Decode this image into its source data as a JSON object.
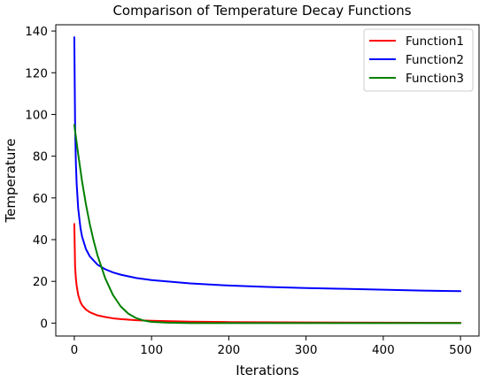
{
  "chart_data": {
    "type": "line",
    "title": "Comparison of Temperature Decay Functions",
    "xlabel": "Iterations",
    "ylabel": "Temperature",
    "xlim": [
      -24,
      524
    ],
    "ylim": [
      -6.2,
      143
    ],
    "xticks": [
      0,
      100,
      200,
      300,
      400,
      500
    ],
    "yticks": [
      0,
      20,
      40,
      60,
      80,
      100,
      120,
      140
    ],
    "grid": false,
    "legend_position": "top-right",
    "series": [
      {
        "name": "Function1",
        "color": "#ff0000",
        "x": [
          0,
          1,
          2,
          3,
          5,
          8,
          10,
          15,
          20,
          30,
          40,
          50,
          60,
          80,
          100,
          150,
          200,
          300,
          400,
          500
        ],
        "y": [
          47.5,
          27.0,
          21.5,
          18.0,
          13.5,
          10.0,
          8.6,
          6.5,
          5.2,
          3.7,
          2.9,
          2.3,
          1.9,
          1.4,
          1.1,
          0.7,
          0.5,
          0.3,
          0.2,
          0.1
        ]
      },
      {
        "name": "Function2",
        "color": "#0000ff",
        "x": [
          0,
          1,
          2,
          3,
          5,
          8,
          10,
          15,
          20,
          30,
          40,
          50,
          60,
          80,
          100,
          150,
          200,
          250,
          300,
          350,
          400,
          450,
          500
        ],
        "y": [
          137.0,
          95.0,
          77.0,
          67.0,
          55.0,
          45.5,
          41.5,
          35.5,
          32.0,
          28.0,
          25.8,
          24.3,
          23.2,
          21.6,
          20.6,
          19.0,
          18.0,
          17.3,
          16.8,
          16.4,
          16.0,
          15.6,
          15.3
        ]
      },
      {
        "name": "Function3",
        "color": "#008000",
        "x": [
          0,
          5,
          10,
          15,
          20,
          25,
          30,
          40,
          50,
          60,
          70,
          80,
          90,
          100,
          120,
          150,
          200,
          300,
          400,
          500
        ],
        "y": [
          95.0,
          81.0,
          68.0,
          57.0,
          47.5,
          39.5,
          32.5,
          21.5,
          13.5,
          8.0,
          4.5,
          2.4,
          1.2,
          0.6,
          0.2,
          0.0,
          0.0,
          0.0,
          0.0,
          0.0
        ]
      }
    ]
  }
}
